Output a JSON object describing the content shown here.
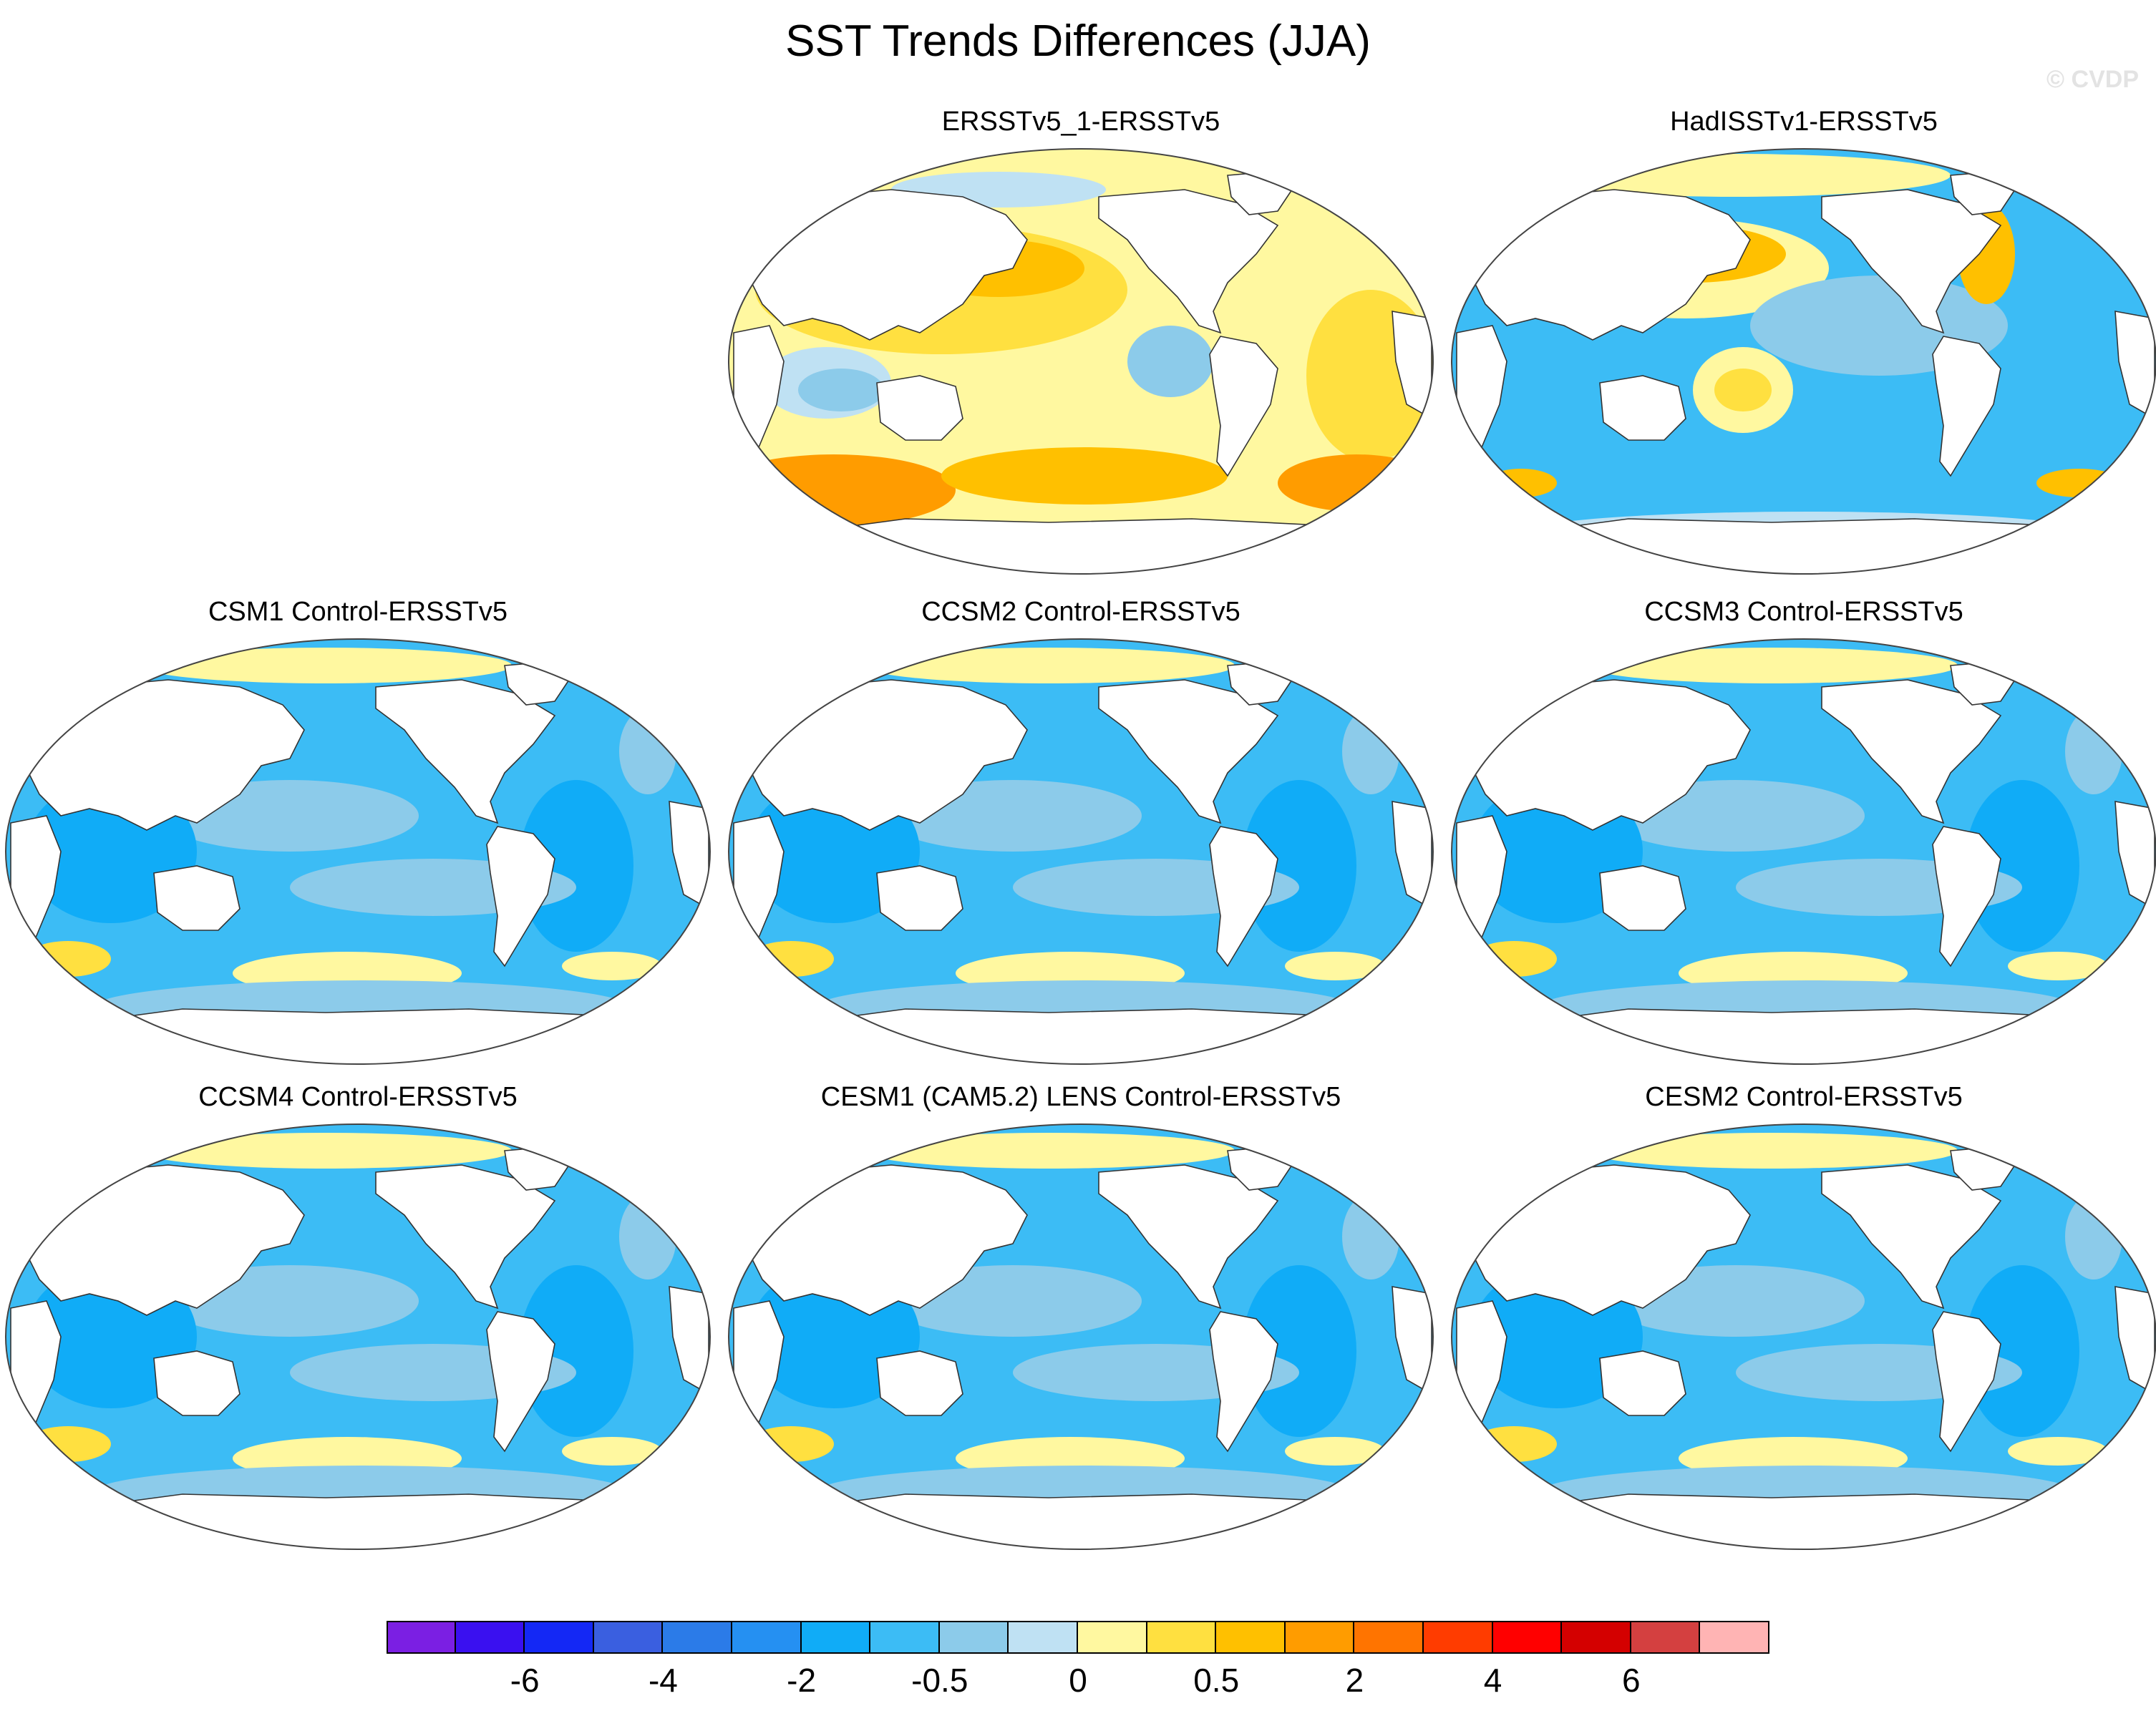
{
  "title": "SST Trends Differences (JJA)",
  "watermark": "© CVDP",
  "panels": [
    {
      "id": "ersstv5_1",
      "title": "ERSSTv5_1-ERSSTv5",
      "pattern": "warm"
    },
    {
      "id": "hadisst",
      "title": "HadISSTv1-ERSSTv5",
      "pattern": "mixed"
    },
    {
      "id": "csm1",
      "title": "CSM1 Control-ERSSTv5",
      "pattern": "cool"
    },
    {
      "id": "ccsm2",
      "title": "CCSM2 Control-ERSSTv5",
      "pattern": "cool"
    },
    {
      "id": "ccsm3",
      "title": "CCSM3 Control-ERSSTv5",
      "pattern": "cool"
    },
    {
      "id": "ccsm4",
      "title": "CCSM4 Control-ERSSTv5",
      "pattern": "cool"
    },
    {
      "id": "cesm1",
      "title": "CESM1 (CAM5.2) LENS Control-ERSSTv5",
      "pattern": "cool"
    },
    {
      "id": "cesm2",
      "title": "CESM2 Control-ERSSTv5",
      "pattern": "cool"
    }
  ],
  "colorbar": {
    "colors": [
      "#7b1fe3",
      "#3a10f0",
      "#1428f5",
      "#3a5fe0",
      "#2b7be8",
      "#2590f2",
      "#10acf7",
      "#3cbcf5",
      "#8ccbea",
      "#bfe1f3",
      "#fff8a0",
      "#ffe040",
      "#ffc000",
      "#ff9c00",
      "#ff7400",
      "#ff3c00",
      "#ff0000",
      "#d40000",
      "#d44040",
      "#ffb4b4"
    ],
    "labels": [
      "-6",
      "-4",
      "-2",
      "-0.5",
      "0",
      "0.5",
      "2",
      "4",
      "6"
    ]
  },
  "colors": {
    "ocean_cool": "#3cbcf5",
    "ocean_deep": "#10acf7",
    "ocean_light": "#8ccbea",
    "ocean_pale": "#bfe1f3",
    "warm_pale": "#fff8a0",
    "warm_yellow": "#ffe040",
    "warm_orange": "#ffc000",
    "warm_dark": "#ff9c00",
    "land": "#ffffff"
  }
}
